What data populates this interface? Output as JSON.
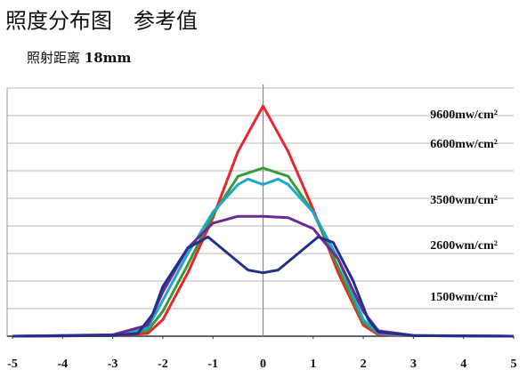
{
  "chart_data": {
    "type": "line",
    "title": "照度分布图　参考值",
    "subtitle": {
      "text": "照射距离",
      "distance": "18mm"
    },
    "xlim": [
      -5,
      5
    ],
    "xticks": [
      -5,
      -4,
      -3,
      -2,
      -1,
      0,
      1,
      2,
      3,
      4,
      5
    ],
    "ylim": [
      0,
      9
    ],
    "ygrid": [
      1,
      2,
      3,
      4,
      5,
      6,
      7,
      8,
      9
    ],
    "grid": true,
    "series": [
      {
        "name": "9600mw/cm²",
        "color": "#e8262b",
        "x": [
          -5,
          -3,
          -2.3,
          -2,
          -1.5,
          -1,
          -0.5,
          0,
          0.5,
          1,
          1.5,
          2,
          2.3,
          3,
          5
        ],
        "values": [
          0,
          0.02,
          0.1,
          0.6,
          2.3,
          4.3,
          6.7,
          8.35,
          6.7,
          4.6,
          2.3,
          0.4,
          0.05,
          0.02,
          0
        ]
      },
      {
        "name": "6600mw/cm²",
        "color": "#3a9a3a",
        "x": [
          -5,
          -3,
          -2.3,
          -2,
          -1.5,
          -1,
          -0.5,
          0,
          0.5,
          1,
          1.5,
          2,
          2.3,
          3,
          5
        ],
        "values": [
          0,
          0.03,
          0.2,
          0.9,
          2.6,
          4.4,
          5.8,
          6.1,
          5.8,
          4.5,
          2.5,
          0.5,
          0.1,
          0.02,
          0
        ]
      },
      {
        "name": "3500wm/cm²",
        "color": "#1fa6cf",
        "x": [
          -5,
          -3,
          -2.3,
          -2,
          -1.5,
          -1,
          -0.5,
          -0.3,
          0,
          0.3,
          0.5,
          1,
          1.5,
          2,
          2.3,
          3,
          5
        ],
        "values": [
          0,
          0.04,
          0.3,
          1.3,
          3.0,
          4.5,
          5.5,
          5.7,
          5.5,
          5.7,
          5.5,
          4.5,
          2.8,
          0.6,
          0.1,
          0.02,
          0
        ]
      },
      {
        "name": "2600wm/cm²",
        "color": "#6a2c8f",
        "x": [
          -5,
          -3,
          -2.3,
          -2,
          -1.5,
          -1,
          -0.5,
          0,
          0.5,
          1,
          1.5,
          2,
          2.3,
          3,
          5
        ],
        "values": [
          0,
          0.05,
          0.4,
          1.6,
          3.2,
          4.1,
          4.35,
          4.35,
          4.3,
          3.9,
          2.8,
          0.9,
          0.2,
          0.03,
          0
        ]
      },
      {
        "name": "1500wm/cm²",
        "color": "#23308a",
        "x": [
          -5,
          -3,
          -2.5,
          -2.2,
          -2,
          -1.5,
          -1.1,
          -0.7,
          -0.3,
          0,
          0.3,
          0.7,
          1.1,
          1.4,
          1.8,
          2.1,
          2.3,
          3,
          5
        ],
        "values": [
          0,
          0.03,
          0.1,
          0.8,
          1.8,
          3.2,
          3.6,
          3.0,
          2.4,
          2.3,
          2.4,
          3.0,
          3.6,
          3.4,
          2.0,
          0.6,
          0.15,
          0.02,
          0
        ]
      }
    ]
  }
}
